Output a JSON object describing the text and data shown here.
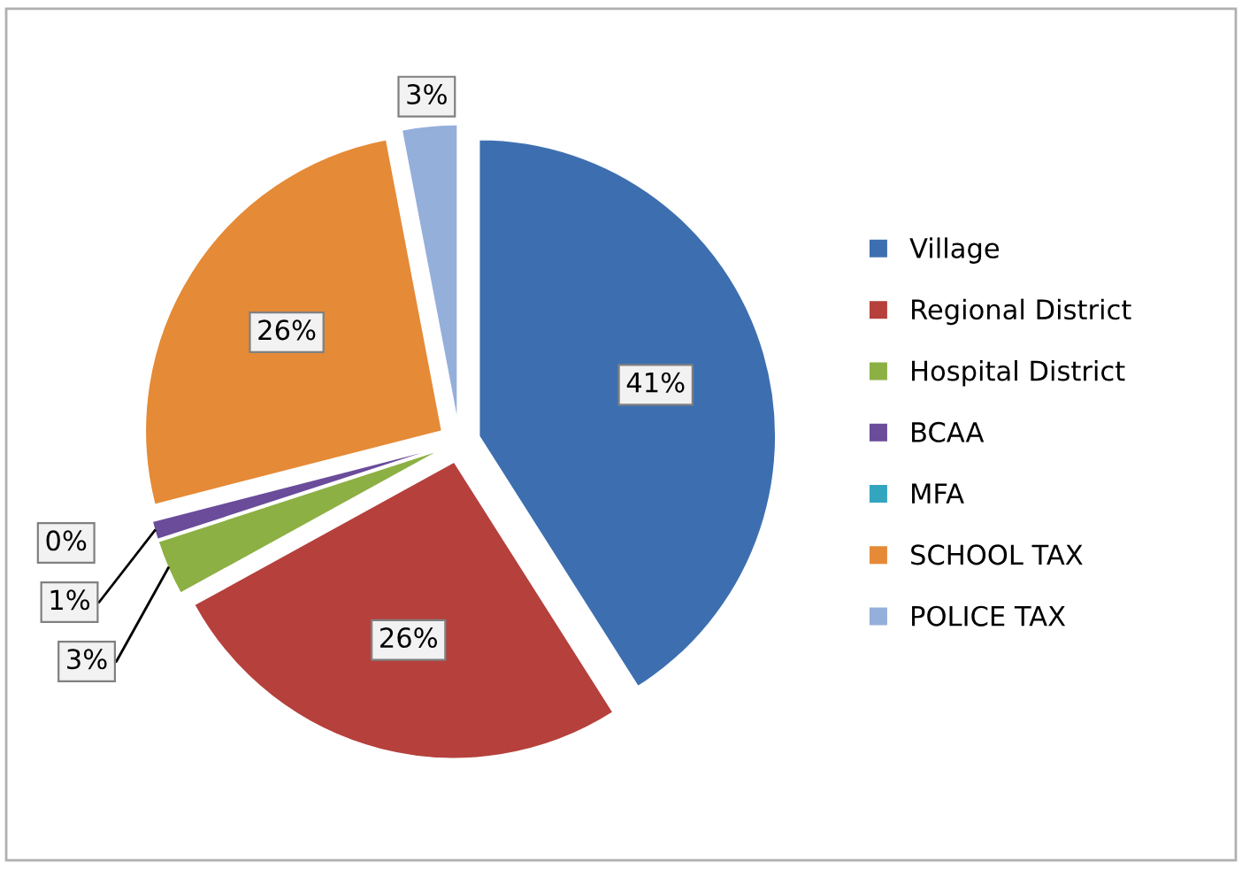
{
  "chart_data": {
    "type": "pie",
    "categories": [
      "Village",
      "Regional District",
      "Hospital District",
      "BCAA",
      "MFA",
      "SCHOOL TAX",
      "POLICE TAX"
    ],
    "values": [
      41,
      26,
      3,
      1,
      0,
      26,
      3
    ],
    "value_labels": [
      "41%",
      "26%",
      "3%",
      "1%",
      "0%",
      "26%",
      "3%"
    ],
    "colors": [
      "#3d6fb0",
      "#b5403c",
      "#8cb043",
      "#6a4c9a",
      "#33a5bf",
      "#e58a37",
      "#95afdb"
    ],
    "legend": "right"
  }
}
